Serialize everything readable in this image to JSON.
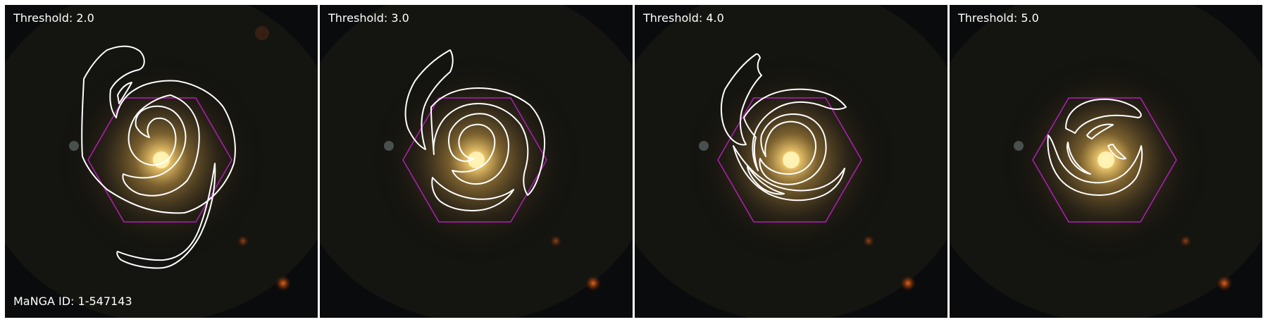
{
  "figure": {
    "object_id_label": "MaNGA ID: 1-547143",
    "panels": [
      {
        "label": "Threshold: 2.0",
        "threshold": 2.0
      },
      {
        "label": "Threshold: 3.0",
        "threshold": 3.0
      },
      {
        "label": "Threshold: 4.0",
        "threshold": 4.0
      },
      {
        "label": "Threshold: 5.0",
        "threshold": 5.0
      }
    ]
  },
  "colors": {
    "background": "#070707",
    "galaxy_core": "#f5d57a",
    "galaxy_halo": "#7a6330",
    "contour": "#ffffff",
    "ifu_hexagon": "#b11fb5",
    "label_text": "#ffffff"
  }
}
